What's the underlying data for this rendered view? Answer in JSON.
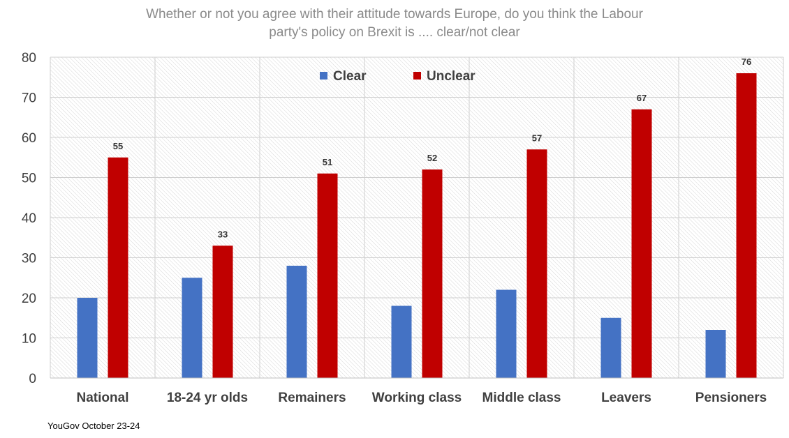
{
  "chart_data": {
    "type": "bar",
    "title_lines": [
      "Whether or not you agree with their attitude towards Europe, do you think the Labour",
      "party's policy on Brexit is .... clear/not clear"
    ],
    "categories": [
      "National",
      "18-24 yr olds",
      "Remainers",
      "Working class",
      "Middle class",
      "Leavers",
      "Pensioners"
    ],
    "series": [
      {
        "name": "Clear",
        "color": "#4472c4",
        "values": [
          20,
          25,
          28,
          18,
          22,
          15,
          12
        ],
        "show_labels": false
      },
      {
        "name": "Unclear",
        "color": "#c00000",
        "values": [
          55,
          33,
          51,
          52,
          57,
          67,
          76
        ],
        "show_labels": true
      }
    ],
    "xlabel": "",
    "ylabel": "",
    "ylim": [
      0,
      80
    ],
    "yticks": [
      0,
      10,
      20,
      30,
      40,
      50,
      60,
      70,
      80
    ],
    "grid": true,
    "legend_position": "top-center"
  },
  "source": "YouGov October 23-24"
}
